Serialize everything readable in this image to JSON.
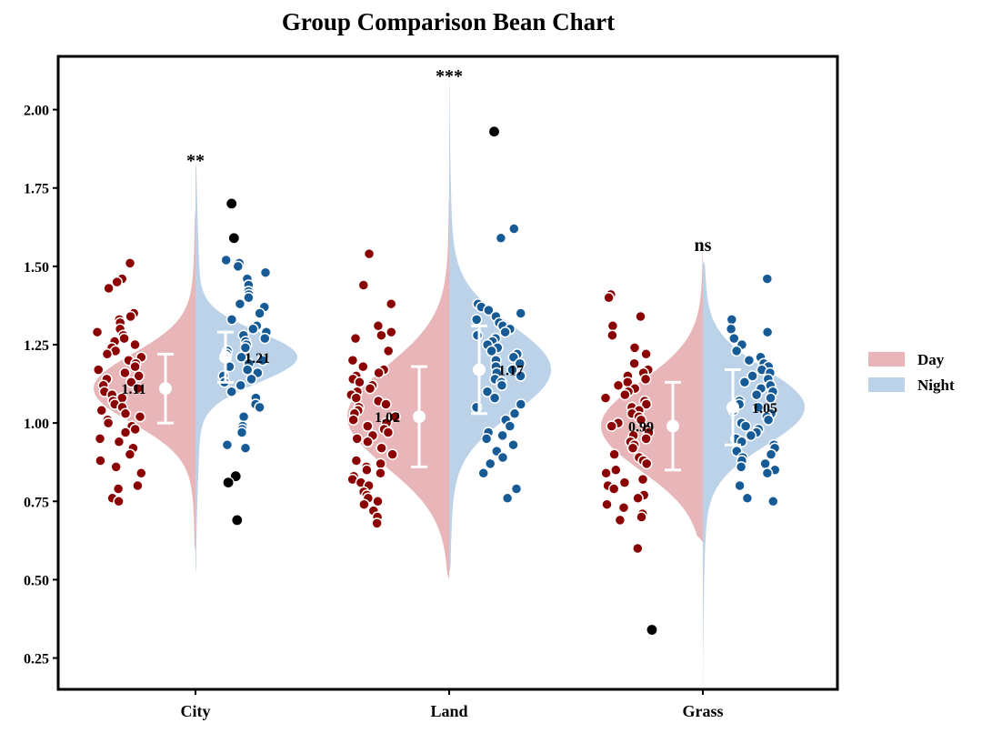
{
  "chart_data": {
    "type": "violin",
    "title": "Group Comparison Bean Chart",
    "xlabel": "",
    "ylabel": "",
    "ylim": [
      0.15,
      2.17
    ],
    "yticks": [
      "0.25",
      "0.50",
      "0.75",
      "1.00",
      "1.25",
      "1.50",
      "1.75",
      "2.00"
    ],
    "ytick_values": [
      0.25,
      0.5,
      0.75,
      1.0,
      1.25,
      1.5,
      1.75,
      2.0
    ],
    "categories": [
      "City",
      "Land",
      "Grass"
    ],
    "legend": {
      "position": "right",
      "items": [
        {
          "label": "Day",
          "color": "#e8b5b8"
        },
        {
          "label": "Night",
          "color": "#bcd2e8"
        }
      ]
    },
    "colors": {
      "day_fill": "#e8b5b8",
      "night_fill": "#bcd2e8",
      "day_point": "#8b0000",
      "night_point": "#165a96",
      "outlier": "#000000",
      "errorbar": "#ffffff"
    },
    "groups": [
      {
        "category": "City",
        "significance": "**",
        "day": {
          "mean": 1.11,
          "mean_label": "1.11",
          "sd": 0.11,
          "min": 0.59,
          "max": 1.68,
          "points": [
            1.51,
            1.46,
            1.45,
            1.43,
            1.35,
            1.34,
            1.33,
            1.32,
            1.3,
            1.29,
            1.28,
            1.27,
            1.26,
            1.25,
            1.24,
            1.23,
            1.22,
            1.21,
            1.2,
            1.19,
            1.18,
            1.17,
            1.16,
            1.15,
            1.14,
            1.13,
            1.12,
            1.11,
            1.1,
            1.09,
            1.08,
            1.07,
            1.06,
            1.05,
            1.04,
            1.03,
            1.02,
            1.01,
            1.0,
            0.99,
            0.98,
            0.97,
            0.95,
            0.94,
            0.92,
            0.9,
            0.88,
            0.86,
            0.84,
            0.8,
            0.79,
            0.76,
            0.75
          ],
          "outliers": []
        },
        "night": {
          "mean": 1.21,
          "mean_label": "1.21",
          "sd": 0.08,
          "min": 0.52,
          "max": 1.83,
          "points": [
            1.52,
            1.51,
            1.5,
            1.48,
            1.46,
            1.44,
            1.42,
            1.41,
            1.4,
            1.38,
            1.37,
            1.35,
            1.33,
            1.31,
            1.3,
            1.29,
            1.28,
            1.27,
            1.26,
            1.25,
            1.24,
            1.23,
            1.22,
            1.21,
            1.2,
            1.19,
            1.18,
            1.17,
            1.16,
            1.15,
            1.14,
            1.13,
            1.12,
            1.1,
            1.08,
            1.06,
            1.05,
            1.02,
            0.99,
            0.98,
            0.97,
            0.93,
            0.92
          ],
          "outliers": [
            1.7,
            1.59,
            0.83,
            0.81,
            0.69
          ]
        }
      },
      {
        "category": "Land",
        "significance": "***",
        "day": {
          "mean": 1.02,
          "mean_label": "1.02",
          "sd": 0.16,
          "min": 0.5,
          "max": 1.72,
          "points": [
            1.54,
            1.44,
            1.38,
            1.31,
            1.29,
            1.28,
            1.27,
            1.23,
            1.2,
            1.18,
            1.17,
            1.16,
            1.15,
            1.14,
            1.13,
            1.12,
            1.11,
            1.1,
            1.09,
            1.08,
            1.07,
            1.06,
            1.05,
            1.04,
            1.03,
            1.02,
            1.01,
            1.0,
            0.99,
            0.98,
            0.97,
            0.96,
            0.95,
            0.94,
            0.92,
            0.9,
            0.88,
            0.87,
            0.86,
            0.85,
            0.84,
            0.83,
            0.82,
            0.81,
            0.8,
            0.78,
            0.77,
            0.76,
            0.75,
            0.74,
            0.72,
            0.7,
            0.68
          ],
          "outliers": []
        },
        "night": {
          "mean": 1.17,
          "mean_label": "1.17",
          "sd": 0.14,
          "min": 0.52,
          "max": 2.1,
          "points": [
            1.62,
            1.59,
            1.38,
            1.37,
            1.36,
            1.35,
            1.34,
            1.33,
            1.32,
            1.31,
            1.3,
            1.29,
            1.28,
            1.27,
            1.26,
            1.25,
            1.24,
            1.23,
            1.22,
            1.21,
            1.2,
            1.19,
            1.18,
            1.17,
            1.16,
            1.15,
            1.14,
            1.13,
            1.12,
            1.1,
            1.08,
            1.06,
            1.05,
            1.03,
            1.01,
            0.99,
            0.97,
            0.96,
            0.95,
            0.93,
            0.91,
            0.89,
            0.87,
            0.84,
            0.79,
            0.76
          ],
          "outliers": [
            1.93
          ]
        }
      },
      {
        "category": "Grass",
        "significance": "ns",
        "day": {
          "mean": 0.99,
          "mean_label": "0.99",
          "sd": 0.14,
          "min": 0.62,
          "max": 1.56,
          "points": [
            1.41,
            1.4,
            1.34,
            1.31,
            1.28,
            1.24,
            1.22,
            1.19,
            1.17,
            1.16,
            1.15,
            1.14,
            1.13,
            1.12,
            1.11,
            1.1,
            1.09,
            1.08,
            1.07,
            1.06,
            1.05,
            1.04,
            1.03,
            1.02,
            1.01,
            1.0,
            0.99,
            0.98,
            0.97,
            0.96,
            0.95,
            0.94,
            0.93,
            0.92,
            0.9,
            0.89,
            0.88,
            0.87,
            0.85,
            0.84,
            0.82,
            0.81,
            0.8,
            0.79,
            0.77,
            0.76,
            0.74,
            0.73,
            0.71,
            0.7,
            0.69,
            0.6
          ],
          "outliers": [
            0.34
          ]
        },
        "night": {
          "mean": 1.05,
          "mean_label": "1.05",
          "sd": 0.12,
          "min": 0.16,
          "max": 1.52,
          "points": [
            1.46,
            1.33,
            1.3,
            1.29,
            1.27,
            1.25,
            1.23,
            1.21,
            1.2,
            1.19,
            1.18,
            1.17,
            1.16,
            1.15,
            1.14,
            1.13,
            1.12,
            1.11,
            1.1,
            1.09,
            1.08,
            1.07,
            1.06,
            1.05,
            1.04,
            1.03,
            1.02,
            1.01,
            1.0,
            0.99,
            0.98,
            0.97,
            0.96,
            0.95,
            0.94,
            0.93,
            0.92,
            0.91,
            0.9,
            0.89,
            0.88,
            0.87,
            0.86,
            0.85,
            0.84,
            0.8,
            0.76,
            0.75
          ],
          "outliers": []
        }
      }
    ]
  }
}
